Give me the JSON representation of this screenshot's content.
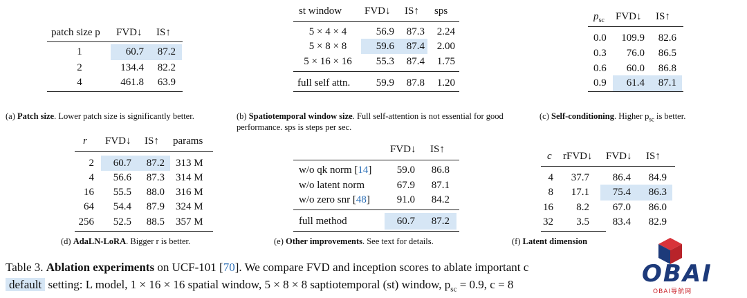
{
  "table_a": {
    "headers": [
      "patch size p",
      "FVD↓",
      "IS↑"
    ],
    "rows": [
      [
        "1",
        "60.7",
        "87.2"
      ],
      [
        "2",
        "134.4",
        "82.2"
      ],
      [
        "4",
        "461.8",
        "63.9"
      ]
    ],
    "caption_label": "Patch size",
    "caption_text": ". Lower patch size is significantly better.",
    "caption_prefix": "(a)"
  },
  "table_b": {
    "headers": [
      "st window",
      "FVD↓",
      "IS↑",
      "sps"
    ],
    "rows": [
      [
        "5 × 4 × 4",
        "56.9",
        "87.3",
        "2.24"
      ],
      [
        "5 × 8 × 8",
        "59.6",
        "87.4",
        "2.00"
      ],
      [
        "5 × 16 × 16",
        "55.3",
        "87.4",
        "1.75"
      ]
    ],
    "full_row": [
      "full self attn.",
      "59.9",
      "87.8",
      "1.20"
    ],
    "caption_prefix": "(b)",
    "caption_label": "Spatiotemporal window size",
    "caption_text": ". Full self-attention is not essential for good performance. sps is steps per sec."
  },
  "table_c": {
    "headers": [
      "p",
      "sc",
      "FVD↓",
      "IS↑"
    ],
    "rows": [
      [
        "0.0",
        "109.9",
        "82.6"
      ],
      [
        "0.3",
        "76.0",
        "86.5"
      ],
      [
        "0.6",
        "60.0",
        "86.8"
      ],
      [
        "0.9",
        "61.4",
        "87.1"
      ]
    ],
    "caption_prefix": "(c)",
    "caption_label": "Self-conditioning",
    "caption_text": ". Higher p",
    "caption_sub": "sc",
    "caption_end": " is better."
  },
  "table_d": {
    "headers": [
      "r",
      "FVD↓",
      "IS↑",
      "params"
    ],
    "rows": [
      [
        "2",
        "60.7",
        "87.2",
        "313 M"
      ],
      [
        "4",
        "56.6",
        "87.3",
        "314 M"
      ],
      [
        "16",
        "55.5",
        "88.0",
        "316 M"
      ],
      [
        "64",
        "54.4",
        "87.9",
        "324 M"
      ],
      [
        "256",
        "52.5",
        "88.5",
        "357 M"
      ]
    ],
    "caption_prefix": "(d)",
    "caption_label": "AdaLN-LoRA",
    "caption_text": ". Bigger r is better."
  },
  "table_e": {
    "headers": [
      "FVD↓",
      "IS↑"
    ],
    "rows": [
      {
        "label": "w/o qk norm [",
        "cite": "14",
        "close": "]",
        "fvd": "59.0",
        "is": "86.8"
      },
      {
        "label": "w/o latent norm",
        "cite": "",
        "close": "",
        "fvd": "67.9",
        "is": "87.1"
      },
      {
        "label": "w/o zero snr [",
        "cite": "48",
        "close": "]",
        "fvd": "91.0",
        "is": "84.2"
      }
    ],
    "full_row": [
      "full method",
      "60.7",
      "87.2"
    ],
    "caption_prefix": "(e)",
    "caption_label": "Other improvements",
    "caption_text": ". See text for details."
  },
  "table_f": {
    "headers": [
      "c",
      "rFVD↓",
      "FVD↓",
      "IS↑"
    ],
    "rows": [
      [
        "4",
        "37.7",
        "86.4",
        "84.9"
      ],
      [
        "8",
        "17.1",
        "75.4",
        "86.3"
      ],
      [
        "16",
        "8.2",
        "67.0",
        "86.0"
      ],
      [
        "32",
        "3.5",
        "83.4",
        "82.9"
      ]
    ],
    "caption_prefix": "(f)",
    "caption_label": "Latent dimension"
  },
  "footer": {
    "line1_prefix": "Table 3.",
    "line1_bold": "Ablation experiments",
    "line1_mid": " on UCF-101 [",
    "line1_cite": "70",
    "line1_rest": "]. We compare FVD and inception scores to ablate important c",
    "line2_default": "default",
    "line2_rest": " setting: L model, 1 × 16 × 16 spatial window, 5 × 8 × 8 saptiotemporal (st) window, p",
    "line2_sub": "sc",
    "line2_end": " = 0.9, c = 8"
  },
  "watermark": {
    "text": "OBAI",
    "subtext": "OBAI导航网",
    "colors": {
      "red": "#c9252c",
      "navy": "#1d3a7a",
      "highlight": "#d6e6f5"
    }
  }
}
